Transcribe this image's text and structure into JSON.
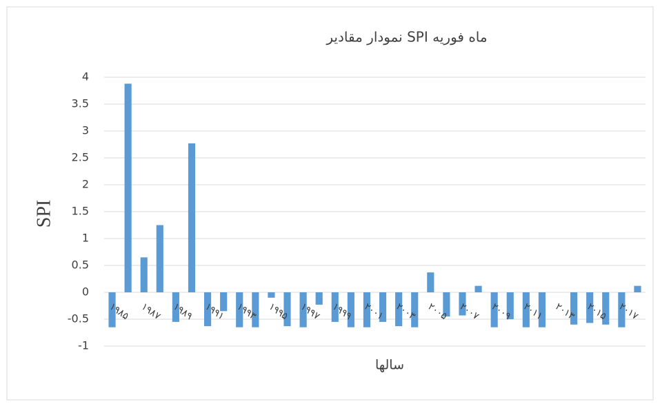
{
  "chart_data": {
    "type": "bar",
    "title": "نمودار مقادیر SPI ماه فوریه",
    "x_label": "سالها",
    "y_label": "SPI",
    "categories": [
      "۱۹۸۵",
      null,
      "۱۹۸۷",
      null,
      "۱۹۸۹",
      null,
      "۱۹۹۱",
      null,
      "۱۹۹۳",
      null,
      "۱۹۹۵",
      null,
      "۱۹۹۷",
      null,
      "۱۹۹۹",
      null,
      "۲۰۰۱",
      null,
      "۲۰۰۳",
      null,
      "۲۰۰۵",
      null,
      "۲۰۰۷",
      null,
      "۲۰۰۹",
      null,
      "۲۰۱۱",
      null,
      "۲۰۱۳",
      null,
      "۲۰۱۵",
      null,
      "۲۰۱۷",
      null
    ],
    "values": [
      -0.65,
      3.88,
      0.65,
      1.25,
      -0.55,
      2.77,
      -0.63,
      -0.35,
      -0.65,
      -0.65,
      -0.1,
      -0.63,
      -0.65,
      -0.23,
      -0.55,
      -0.65,
      -0.65,
      -0.55,
      -0.63,
      -0.65,
      0.37,
      -0.45,
      -0.43,
      0.12,
      -0.65,
      -0.5,
      -0.65,
      -0.65,
      0,
      -0.6,
      -0.57,
      -0.6,
      -0.65,
      0.12
    ],
    "color": "#5b9bd5",
    "ylim": [
      -1,
      4
    ],
    "yticks": [
      -1,
      -0.5,
      0,
      0.5,
      1,
      1.5,
      2,
      2.5,
      3,
      3.5,
      4
    ],
    "grid": true
  }
}
